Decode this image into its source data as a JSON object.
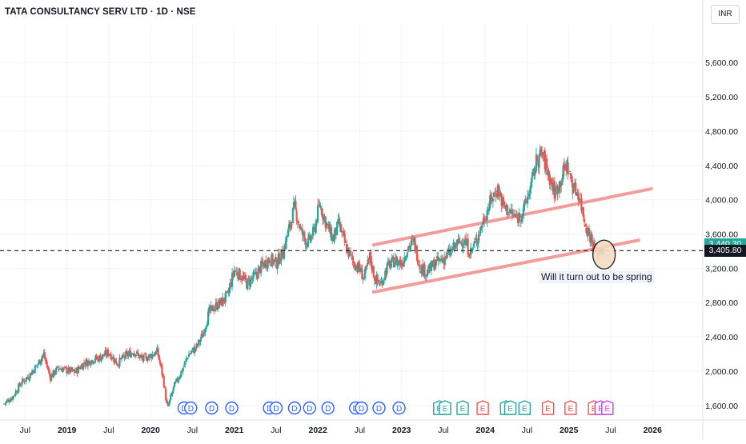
{
  "header": {
    "title": "TATA CONSULTANCY SERV LTD · 1D · NSE",
    "currency": "INR"
  },
  "annotation": "Will it turn out to be spring",
  "price_tags": {
    "last": "3,405.80",
    "prev": "3,440.30"
  },
  "colors": {
    "up": "#26a69a",
    "down": "#ef5350",
    "channel": "#f28b8b",
    "dividend_marker": "#2962ff",
    "earnings_up": "#26a69a",
    "earnings_down": "#ef5350",
    "earnings_other": "#c744d9",
    "highlight_circle": "#f5dcc0",
    "last_price_tag": "#131722",
    "prev_price_tag": "#26a69a"
  },
  "chart_data": {
    "type": "candlestick",
    "x_axis_labels": [
      "Jul",
      "2019",
      "Jul",
      "2020",
      "Jul",
      "2021",
      "Jul",
      "2022",
      "Jul",
      "2023",
      "Jul",
      "2024",
      "Jul",
      "2025",
      "Jul",
      "2026"
    ],
    "y_axis_labels": [
      "1,600.00",
      "2,000.00",
      "2,400.00",
      "2,800.00",
      "3,200.00",
      "3,600.00",
      "4,000.00",
      "4,400.00",
      "4,800.00",
      "5,200.00",
      "5,600.00"
    ],
    "y_ticks": [
      1600,
      2000,
      2400,
      2800,
      3200,
      3600,
      4000,
      4400,
      4800,
      5200,
      5600
    ],
    "x_range": [
      2018.2,
      2026.6
    ],
    "y_range": [
      1430,
      6050
    ],
    "horizontal_line": 3405.8,
    "price_path": [
      [
        2018.25,
        1620
      ],
      [
        2018.35,
        1700
      ],
      [
        2018.45,
        1860
      ],
      [
        2018.55,
        1950
      ],
      [
        2018.65,
        2080
      ],
      [
        2018.72,
        2200
      ],
      [
        2018.8,
        1930
      ],
      [
        2018.9,
        2040
      ],
      [
        2019.0,
        2010
      ],
      [
        2019.1,
        1990
      ],
      [
        2019.2,
        2090
      ],
      [
        2019.3,
        2130
      ],
      [
        2019.4,
        2160
      ],
      [
        2019.5,
        2220
      ],
      [
        2019.6,
        2090
      ],
      [
        2019.7,
        2180
      ],
      [
        2019.8,
        2230
      ],
      [
        2019.9,
        2140
      ],
      [
        2020.0,
        2180
      ],
      [
        2020.08,
        2230
      ],
      [
        2020.15,
        1920
      ],
      [
        2020.2,
        1560
      ],
      [
        2020.28,
        1820
      ],
      [
        2020.38,
        2020
      ],
      [
        2020.45,
        2190
      ],
      [
        2020.55,
        2280
      ],
      [
        2020.62,
        2420
      ],
      [
        2020.7,
        2690
      ],
      [
        2020.78,
        2760
      ],
      [
        2020.85,
        2810
      ],
      [
        2020.92,
        2880
      ],
      [
        2021.0,
        3180
      ],
      [
        2021.08,
        3110
      ],
      [
        2021.15,
        3020
      ],
      [
        2021.25,
        3110
      ],
      [
        2021.33,
        3230
      ],
      [
        2021.42,
        3310
      ],
      [
        2021.5,
        3260
      ],
      [
        2021.58,
        3380
      ],
      [
        2021.67,
        3720
      ],
      [
        2021.72,
        3920
      ],
      [
        2021.8,
        3620
      ],
      [
        2021.88,
        3490
      ],
      [
        2021.95,
        3620
      ],
      [
        2022.02,
        3950
      ],
      [
        2022.1,
        3720
      ],
      [
        2022.18,
        3540
      ],
      [
        2022.25,
        3720
      ],
      [
        2022.33,
        3460
      ],
      [
        2022.42,
        3270
      ],
      [
        2022.5,
        3190
      ],
      [
        2022.55,
        3080
      ],
      [
        2022.62,
        3330
      ],
      [
        2022.68,
        3080
      ],
      [
        2022.75,
        3010
      ],
      [
        2022.83,
        3220
      ],
      [
        2022.92,
        3290
      ],
      [
        2023.0,
        3260
      ],
      [
        2023.08,
        3450
      ],
      [
        2023.15,
        3500
      ],
      [
        2023.22,
        3220
      ],
      [
        2023.3,
        3150
      ],
      [
        2023.4,
        3260
      ],
      [
        2023.5,
        3310
      ],
      [
        2023.58,
        3380
      ],
      [
        2023.66,
        3480
      ],
      [
        2023.74,
        3540
      ],
      [
        2023.82,
        3380
      ],
      [
        2023.9,
        3540
      ],
      [
        2024.0,
        3820
      ],
      [
        2024.08,
        4020
      ],
      [
        2024.15,
        4130
      ],
      [
        2024.22,
        3920
      ],
      [
        2024.3,
        3850
      ],
      [
        2024.38,
        3780
      ],
      [
        2024.46,
        3880
      ],
      [
        2024.55,
        4180
      ],
      [
        2024.62,
        4480
      ],
      [
        2024.68,
        4530
      ],
      [
        2024.75,
        4320
      ],
      [
        2024.83,
        4080
      ],
      [
        2024.9,
        4220
      ],
      [
        2024.97,
        4420
      ],
      [
        2025.05,
        4150
      ],
      [
        2025.12,
        4060
      ],
      [
        2025.2,
        3700
      ],
      [
        2025.26,
        3560
      ],
      [
        2025.32,
        3380
      ],
      [
        2025.36,
        3410
      ],
      [
        2025.42,
        3450
      ]
    ],
    "channel_lines": [
      {
        "name": "upper",
        "points": [
          [
            2022.65,
            3470
          ],
          [
            2026.0,
            4130
          ]
        ]
      },
      {
        "name": "lower",
        "points": [
          [
            2022.65,
            2920
          ],
          [
            2025.85,
            3530
          ]
        ]
      }
    ],
    "event_markers": [
      {
        "date": 2020.4,
        "kind": "D"
      },
      {
        "date": 2020.48,
        "kind": "D"
      },
      {
        "date": 2020.73,
        "kind": "D"
      },
      {
        "date": 2020.97,
        "kind": "D"
      },
      {
        "date": 2021.42,
        "kind": "D"
      },
      {
        "date": 2021.5,
        "kind": "D"
      },
      {
        "date": 2021.72,
        "kind": "D"
      },
      {
        "date": 2021.9,
        "kind": "D"
      },
      {
        "date": 2022.12,
        "kind": "D"
      },
      {
        "date": 2022.45,
        "kind": "D"
      },
      {
        "date": 2022.52,
        "kind": "D"
      },
      {
        "date": 2022.73,
        "kind": "D"
      },
      {
        "date": 2022.97,
        "kind": "D"
      },
      {
        "date": 2023.45,
        "kind": "E-up"
      },
      {
        "date": 2023.52,
        "kind": "E-up"
      },
      {
        "date": 2023.73,
        "kind": "E-up"
      },
      {
        "date": 2023.97,
        "kind": "E-down"
      },
      {
        "date": 2024.25,
        "kind": "E-up"
      },
      {
        "date": 2024.3,
        "kind": "E-up"
      },
      {
        "date": 2024.47,
        "kind": "E-up"
      },
      {
        "date": 2024.75,
        "kind": "E-down"
      },
      {
        "date": 2025.02,
        "kind": "E-down"
      },
      {
        "date": 2025.3,
        "kind": "E-down"
      },
      {
        "date": 2025.38,
        "kind": "E-other"
      },
      {
        "date": 2025.46,
        "kind": "E-other"
      }
    ]
  }
}
